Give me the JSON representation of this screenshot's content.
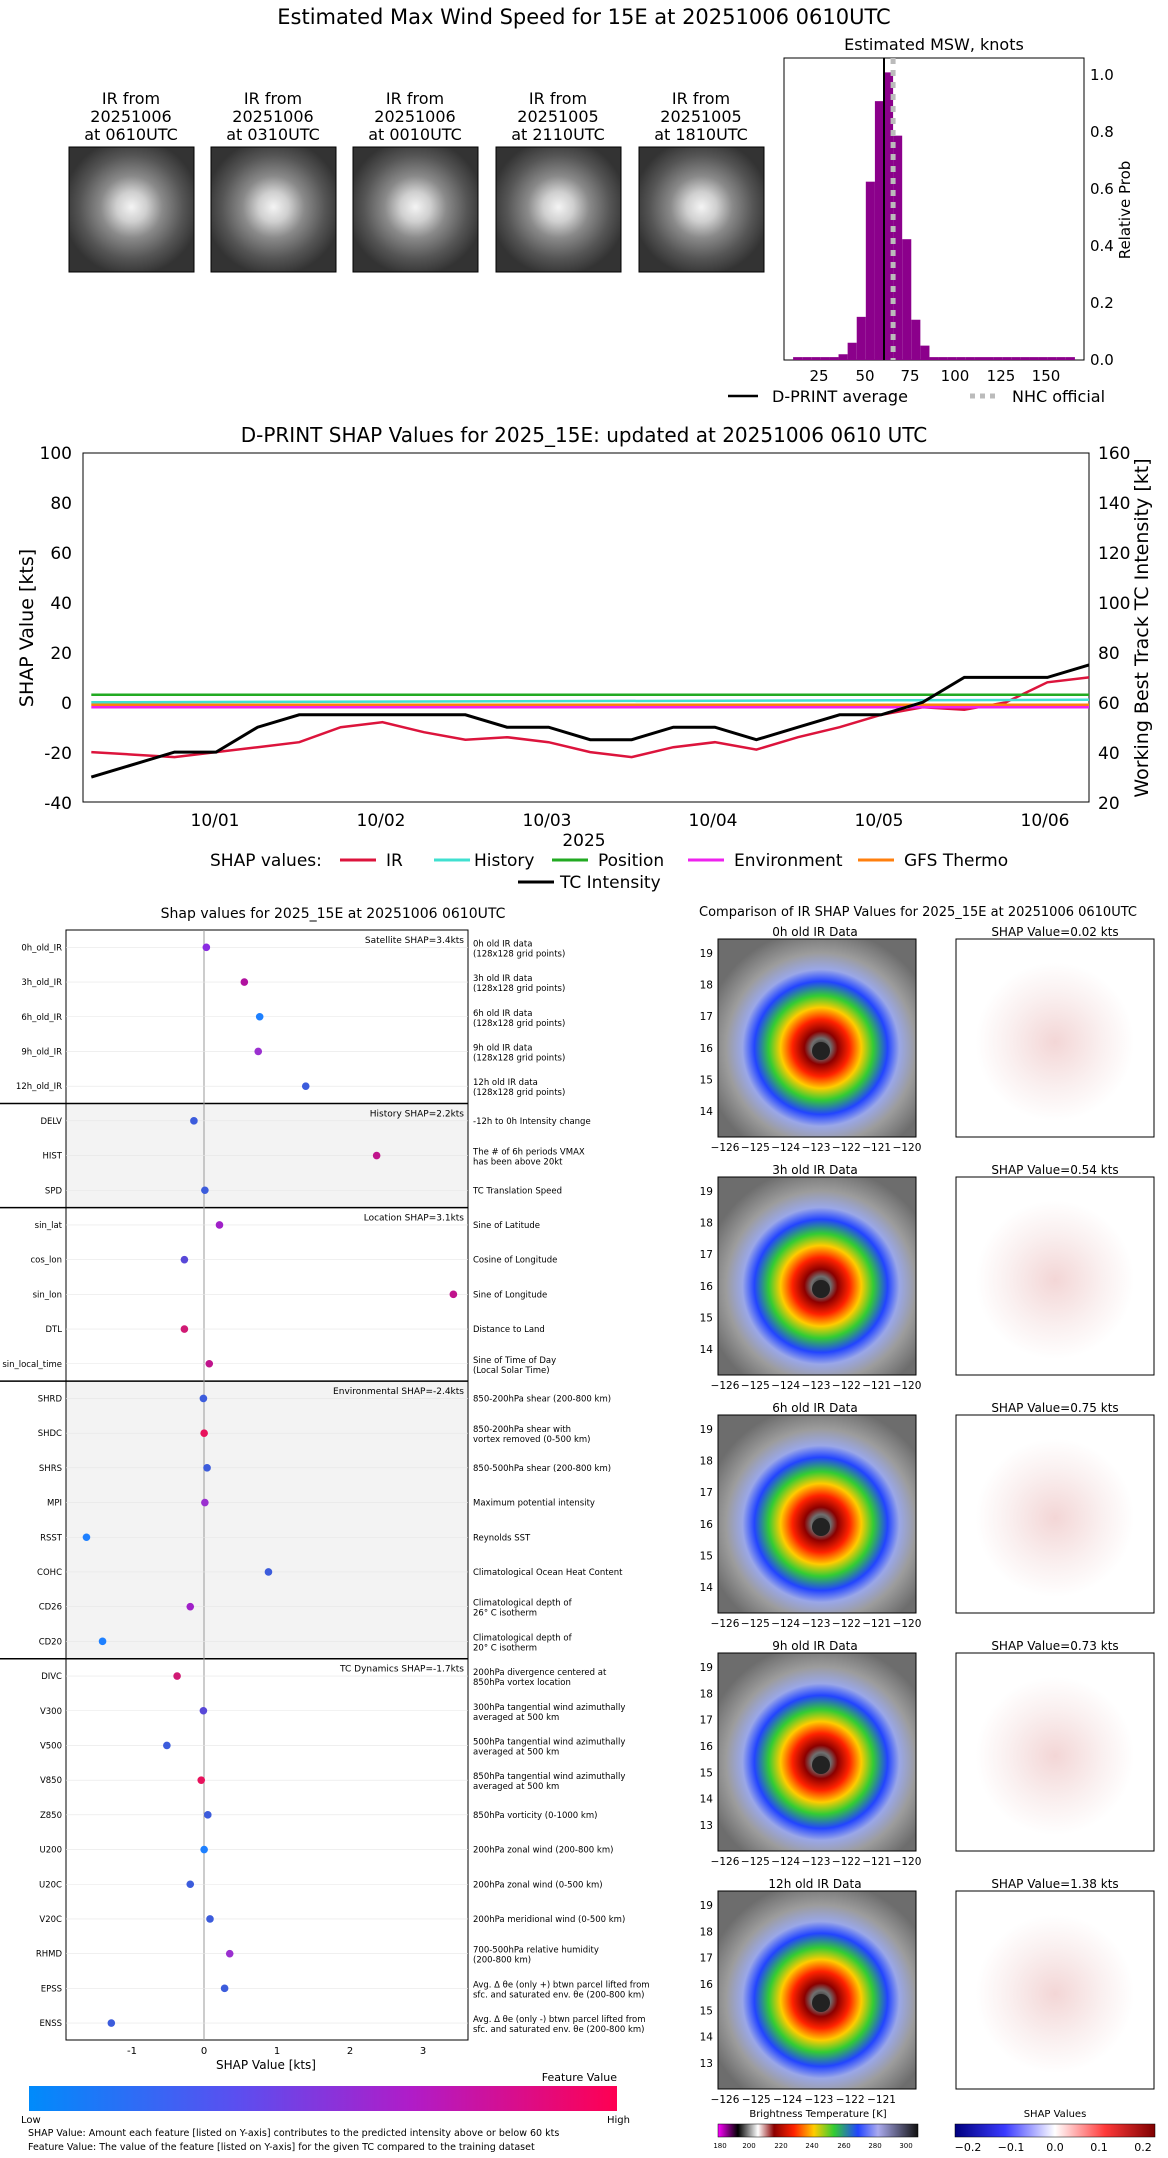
{
  "top": {
    "title": "Estimated Max Wind Speed for 15E at 20251006 0610UTC",
    "thumbs": [
      {
        "line1": "IR from",
        "line2": "20251006",
        "line3": "at 0610UTC"
      },
      {
        "line1": "IR from",
        "line2": "20251006",
        "line3": "at 0310UTC"
      },
      {
        "line1": "IR from",
        "line2": "20251006",
        "line3": "at 0010UTC"
      },
      {
        "line1": "IR from",
        "line2": "20251005",
        "line3": "at 2110UTC"
      },
      {
        "line1": "IR from",
        "line2": "20251005",
        "line3": "at 1810UTC"
      }
    ]
  },
  "hist_chart": {
    "title": "Estimated MSW, knots",
    "ylabel": "Relative Prob",
    "xticks": [
      "25",
      "50",
      "75",
      "100",
      "125",
      "150"
    ],
    "yticks": [
      "0.0",
      "0.2",
      "0.4",
      "0.6",
      "0.8",
      "1.0"
    ],
    "legend_avg": "D-PRINT average",
    "legend_nhc": "NHC official",
    "colors": {
      "bar": "#8b008b",
      "avg": "#000000",
      "nhc": "#bbbbbb"
    }
  },
  "shap_ts": {
    "title": "D-PRINT SHAP Values for 2025_15E: updated at 20251006 0610 UTC",
    "ylabel_left": "SHAP Value [kts]",
    "ylabel_right": "Working Best Track TC Intensity [kt]",
    "xlabel": "2025",
    "left_ticks": [
      "100",
      "80",
      "60",
      "40",
      "20",
      "0",
      "-20",
      "-40"
    ],
    "right_ticks": [
      "160",
      "140",
      "120",
      "100",
      "80",
      "60",
      "40",
      "20"
    ],
    "xticks": [
      "10/01",
      "10/02",
      "10/03",
      "10/04",
      "10/05",
      "10/06"
    ],
    "legend_title": "SHAP values:",
    "legend": [
      {
        "name": "IR",
        "color": "#dc143c"
      },
      {
        "name": "History",
        "color": "#40e0d0"
      },
      {
        "name": "Position",
        "color": "#22aa22"
      },
      {
        "name": "Environment",
        "color": "#ee22ee"
      },
      {
        "name": "GFS Thermo",
        "color": "#ff7f0e"
      }
    ],
    "legend_tc": "TC Intensity"
  },
  "chart_data": [
    {
      "type": "bar",
      "title": "Estimated MSW, knots",
      "xlabel": "",
      "ylabel": "Relative Prob",
      "xlim": [
        10,
        175
      ],
      "ylim": [
        0,
        1.05
      ],
      "bin_width": 5,
      "bin_starts": [
        15,
        20,
        25,
        30,
        35,
        40,
        45,
        50,
        55,
        60,
        65,
        70,
        75,
        80,
        85,
        90,
        95,
        100,
        105,
        110,
        115,
        120,
        125,
        130,
        135,
        140,
        145,
        150,
        155,
        160,
        165
      ],
      "values": [
        0.01,
        0.01,
        0.01,
        0.01,
        0.01,
        0.02,
        0.06,
        0.15,
        0.62,
        0.9,
        1.0,
        0.78,
        0.42,
        0.14,
        0.05,
        0.01,
        0.01,
        0.01,
        0.01,
        0.01,
        0.01,
        0.01,
        0.01,
        0.01,
        0.01,
        0.01,
        0.01,
        0.01,
        0.01,
        0.01,
        0.01
      ],
      "avg_line": 65,
      "nhc_official": 70
    },
    {
      "type": "line",
      "title": "D-PRINT SHAP Values for 2025_15E: updated at 20251006 0610 UTC",
      "xlabel": "2025",
      "ylabel": "SHAP Value [kts]",
      "y2label": "Working Best Track TC Intensity [kt]",
      "x_unit": "days since 2025-09-30 00:00 UTC",
      "xlim": [
        0.2,
        6.25
      ],
      "ylim": [
        -40,
        100
      ],
      "y2lim": [
        20,
        160
      ],
      "series": [
        {
          "name": "IR",
          "x": [
            0.25,
            0.5,
            0.75,
            1.0,
            1.25,
            1.5,
            1.75,
            2.0,
            2.25,
            2.5,
            2.75,
            3.0,
            3.25,
            3.5,
            3.75,
            4.0,
            4.25,
            4.5,
            4.75,
            5.0,
            5.25,
            5.5,
            5.75,
            6.0,
            6.25
          ],
          "y": [
            -20,
            -21,
            -22,
            -20,
            -18,
            -16,
            -10,
            -8,
            -12,
            -15,
            -14,
            -16,
            -20,
            -22,
            -18,
            -16,
            -19,
            -14,
            -10,
            -5,
            -2,
            -3,
            0,
            8,
            10
          ]
        },
        {
          "name": "History",
          "x": [
            0.25,
            6.25
          ],
          "y": [
            0,
            1
          ]
        },
        {
          "name": "Position",
          "x": [
            0.25,
            3.0,
            6.25
          ],
          "y": [
            3,
            3,
            3
          ]
        },
        {
          "name": "Environment",
          "x": [
            0.25,
            3.0,
            6.25
          ],
          "y": [
            -2,
            -2,
            -2
          ]
        },
        {
          "name": "GFS Thermo",
          "x": [
            0.25,
            3.0,
            6.25
          ],
          "y": [
            -1,
            -1,
            -1
          ]
        },
        {
          "name": "TC Intensity",
          "axis": "right",
          "x": [
            0.25,
            0.75,
            1.0,
            1.25,
            1.5,
            2.0,
            2.25,
            2.5,
            2.75,
            3.0,
            3.25,
            3.5,
            3.75,
            4.0,
            4.25,
            4.5,
            4.75,
            5.0,
            5.25,
            5.5,
            5.75,
            6.0,
            6.25
          ],
          "y": [
            30,
            40,
            40,
            50,
            55,
            55,
            55,
            55,
            50,
            50,
            45,
            45,
            50,
            50,
            45,
            50,
            55,
            55,
            60,
            70,
            70,
            70,
            75
          ]
        }
      ]
    },
    {
      "type": "scatter",
      "title": "Shap values for 2025_15E at 20251006 0610UTC",
      "xlabel": "SHAP Value [kts]",
      "xlim": [
        -1.9,
        3.6
      ],
      "xticks": [
        -1,
        0,
        1,
        2,
        3
      ],
      "groups": [
        {
          "label": "Satellite SHAP=3.4kts",
          "features": [
            {
              "name": "0h_old_IR",
              "desc1": "0h old IR data",
              "desc2": "(128x128 grid points)",
              "value": 0.02,
              "color": "#8a2be2"
            },
            {
              "name": "3h_old_IR",
              "desc1": "3h old IR data",
              "desc2": "(128x128 grid points)",
              "value": 0.54,
              "color": "#b0129f"
            },
            {
              "name": "6h_old_IR",
              "desc1": "6h old IR data",
              "desc2": "(128x128 grid points)",
              "value": 0.75,
              "color": "#1e80ff"
            },
            {
              "name": "9h_old_IR",
              "desc1": "9h old IR data",
              "desc2": "(128x128 grid points)",
              "value": 0.73,
              "color": "#9b30d0"
            },
            {
              "name": "12h_old_IR",
              "desc1": "12h old IR data",
              "desc2": "(128x128 grid points)",
              "value": 1.38,
              "color": "#3c5cdc"
            }
          ]
        },
        {
          "label": "History SHAP=2.2kts",
          "features": [
            {
              "name": "DELV",
              "desc1": "-12h to 0h Intensity change",
              "desc2": "",
              "value": -0.15,
              "color": "#3c5cdc"
            },
            {
              "name": "HIST",
              "desc1": "The # of 6h periods VMAX",
              "desc2": "has been above 20kt",
              "value": 2.35,
              "color": "#c0148c"
            },
            {
              "name": "SPD",
              "desc1": "TC Translation Speed",
              "desc2": "",
              "value": 0.0,
              "color": "#3c5cdc"
            }
          ]
        },
        {
          "label": "Location SHAP=3.1kts",
          "features": [
            {
              "name": "sin_lat",
              "desc1": "Sine of Latitude",
              "desc2": "",
              "value": 0.2,
              "color": "#a020c8"
            },
            {
              "name": "cos_lon",
              "desc1": "Cosine of Longitude",
              "desc2": "",
              "value": -0.28,
              "color": "#5848d8"
            },
            {
              "name": "sin_lon",
              "desc1": "Sine of Longitude",
              "desc2": "",
              "value": 3.4,
              "color": "#c0148c"
            },
            {
              "name": "DTL",
              "desc1": "Distance to Land",
              "desc2": "",
              "value": -0.28,
              "color": "#d01a74"
            },
            {
              "name": "sin_local_time",
              "desc1": "Sine of Time of Day",
              "desc2": "(Local Solar Time)",
              "value": 0.06,
              "color": "#c0148c"
            }
          ]
        },
        {
          "label": "Environmental SHAP=-2.4kts",
          "features": [
            {
              "name": "SHRD",
              "desc1": "850-200hPa shear (200-800 km)",
              "desc2": "",
              "value": -0.02,
              "color": "#3c5cdc"
            },
            {
              "name": "SHDC",
              "desc1": "850-200hPa shear with",
              "desc2": "vortex removed (0-500 km)",
              "value": -0.01,
              "color": "#e8125c"
            },
            {
              "name": "SHRS",
              "desc1": "850-500hPa shear (200-800 km)",
              "desc2": "",
              "value": 0.03,
              "color": "#3c5cdc"
            },
            {
              "name": "MPI",
              "desc1": "Maximum potential intensity",
              "desc2": "",
              "value": 0.0,
              "color": "#9b30d0"
            },
            {
              "name": "RSST",
              "desc1": "Reynolds SST",
              "desc2": "",
              "value": -1.62,
              "color": "#1e80ff"
            },
            {
              "name": "COHC",
              "desc1": "Climatological Ocean Heat Content",
              "desc2": "",
              "value": 0.87,
              "color": "#3c5cdc"
            },
            {
              "name": "CD26",
              "desc1": "Climatological depth of",
              "desc2": "26° C isotherm",
              "value": -0.2,
              "color": "#a020c8"
            },
            {
              "name": "CD20",
              "desc1": "Climatological depth of",
              "desc2": "20° C isotherm",
              "value": -1.4,
              "color": "#1e80ff"
            }
          ]
        },
        {
          "label": "TC Dynamics SHAP=-1.7kts",
          "features": [
            {
              "name": "DIVC",
              "desc1": "200hPa divergence centered at",
              "desc2": "850hPa vortex location",
              "value": -0.38,
              "color": "#d01a74"
            },
            {
              "name": "V300",
              "desc1": "300hPa tangential wind azimuthally",
              "desc2": "averaged at 500 km",
              "value": -0.02,
              "color": "#5848d8"
            },
            {
              "name": "V500",
              "desc1": "500hPa tangential wind azimuthally",
              "desc2": "averaged at 500 km",
              "value": -0.52,
              "color": "#3c5cdc"
            },
            {
              "name": "V850",
              "desc1": "850hPa tangential wind azimuthally",
              "desc2": "averaged at 500 km",
              "value": -0.05,
              "color": "#e8125c"
            },
            {
              "name": "Z850",
              "desc1": "850hPa vorticity (0-1000 km)",
              "desc2": "",
              "value": 0.04,
              "color": "#3c5cdc"
            },
            {
              "name": "U200",
              "desc1": "200hPa zonal wind (200-800 km)",
              "desc2": "",
              "value": -0.01,
              "color": "#1e80ff"
            },
            {
              "name": "U20C",
              "desc1": "200hPa zonal wind (0-500 km)",
              "desc2": "",
              "value": -0.2,
              "color": "#3c5cdc"
            },
            {
              "name": "V20C",
              "desc1": "200hPa meridional wind (0-500 km)",
              "desc2": "",
              "value": 0.07,
              "color": "#3c5cdc"
            },
            {
              "name": "RHMD",
              "desc1": "700-500hPa relative humidity",
              "desc2": "(200-800 km)",
              "value": 0.34,
              "color": "#9b30d0"
            },
            {
              "name": "EPSS",
              "desc1": "Avg. Δ θe (only +) btwn parcel lifted from",
              "desc2": "sfc. and saturated env. θe (200-800 km)",
              "value": 0.27,
              "color": "#3c5cdc"
            },
            {
              "name": "ENSS",
              "desc1": "Avg. Δ θe (only -) btwn parcel lifted from",
              "desc2": "sfc. and saturated env. θe (200-800 km)",
              "value": -1.28,
              "color": "#3c5cdc"
            }
          ]
        }
      ]
    }
  ],
  "shap_features": {
    "title": "Shap values for 2025_15E at 20251006 0610UTC",
    "xlabel": "SHAP Value [kts]",
    "xticks": [
      "-1",
      "0",
      "1",
      "2",
      "3"
    ],
    "colorbar_title": "Feature Value",
    "low": "Low",
    "high": "High",
    "note1": "SHAP Value: Amount each feature [listed on Y-axis] contributes to the predicted intensity above or below 60 kts",
    "note2": "Feature Value: The value of the feature [listed on Y-axis] for the given TC compared to the training dataset"
  },
  "ir_compare": {
    "title": "Comparison of IR SHAP Values for 2025_15E at 20251006 0610UTC",
    "rows": [
      {
        "ir_title": "0h old IR Data",
        "shap_title": "SHAP Value=0.02 kts",
        "yticks": [
          "19",
          "18",
          "17",
          "16",
          "15",
          "14"
        ],
        "xticks": [
          "−126",
          "−125",
          "−124",
          "−123",
          "−122",
          "−121",
          "−120"
        ]
      },
      {
        "ir_title": "3h old IR Data",
        "shap_title": "SHAP Value=0.54 kts",
        "yticks": [
          "19",
          "18",
          "17",
          "16",
          "15",
          "14"
        ],
        "xticks": [
          "−126",
          "−125",
          "−124",
          "−123",
          "−122",
          "−121",
          "−120"
        ]
      },
      {
        "ir_title": "6h old IR Data",
        "shap_title": "SHAP Value=0.75 kts",
        "yticks": [
          "19",
          "18",
          "17",
          "16",
          "15",
          "14"
        ],
        "xticks": [
          "−126",
          "−125",
          "−124",
          "−123",
          "−122",
          "−121",
          "−120"
        ]
      },
      {
        "ir_title": "9h old IR Data",
        "shap_title": "SHAP Value=0.73 kts",
        "yticks": [
          "19",
          "18",
          "17",
          "16",
          "15",
          "14",
          "13"
        ],
        "xticks": [
          "−126",
          "−125",
          "−124",
          "−123",
          "−122",
          "−121",
          "−120"
        ]
      },
      {
        "ir_title": "12h old IR Data",
        "shap_title": "SHAP Value=1.38 kts",
        "yticks": [
          "19",
          "18",
          "17",
          "16",
          "15",
          "14",
          "13"
        ],
        "xticks": [
          "−126",
          "−125",
          "−124",
          "−123",
          "−122",
          "−121"
        ]
      }
    ],
    "bt_label": "Brightness Temperature [K]",
    "bt_ticks": [
      "180",
      "200",
      "220",
      "240",
      "260",
      "280",
      "300"
    ],
    "shap_label": "SHAP Values",
    "shap_ticks": [
      "−0.2",
      "−0.1",
      "0.0",
      "0.1",
      "0.2"
    ]
  }
}
